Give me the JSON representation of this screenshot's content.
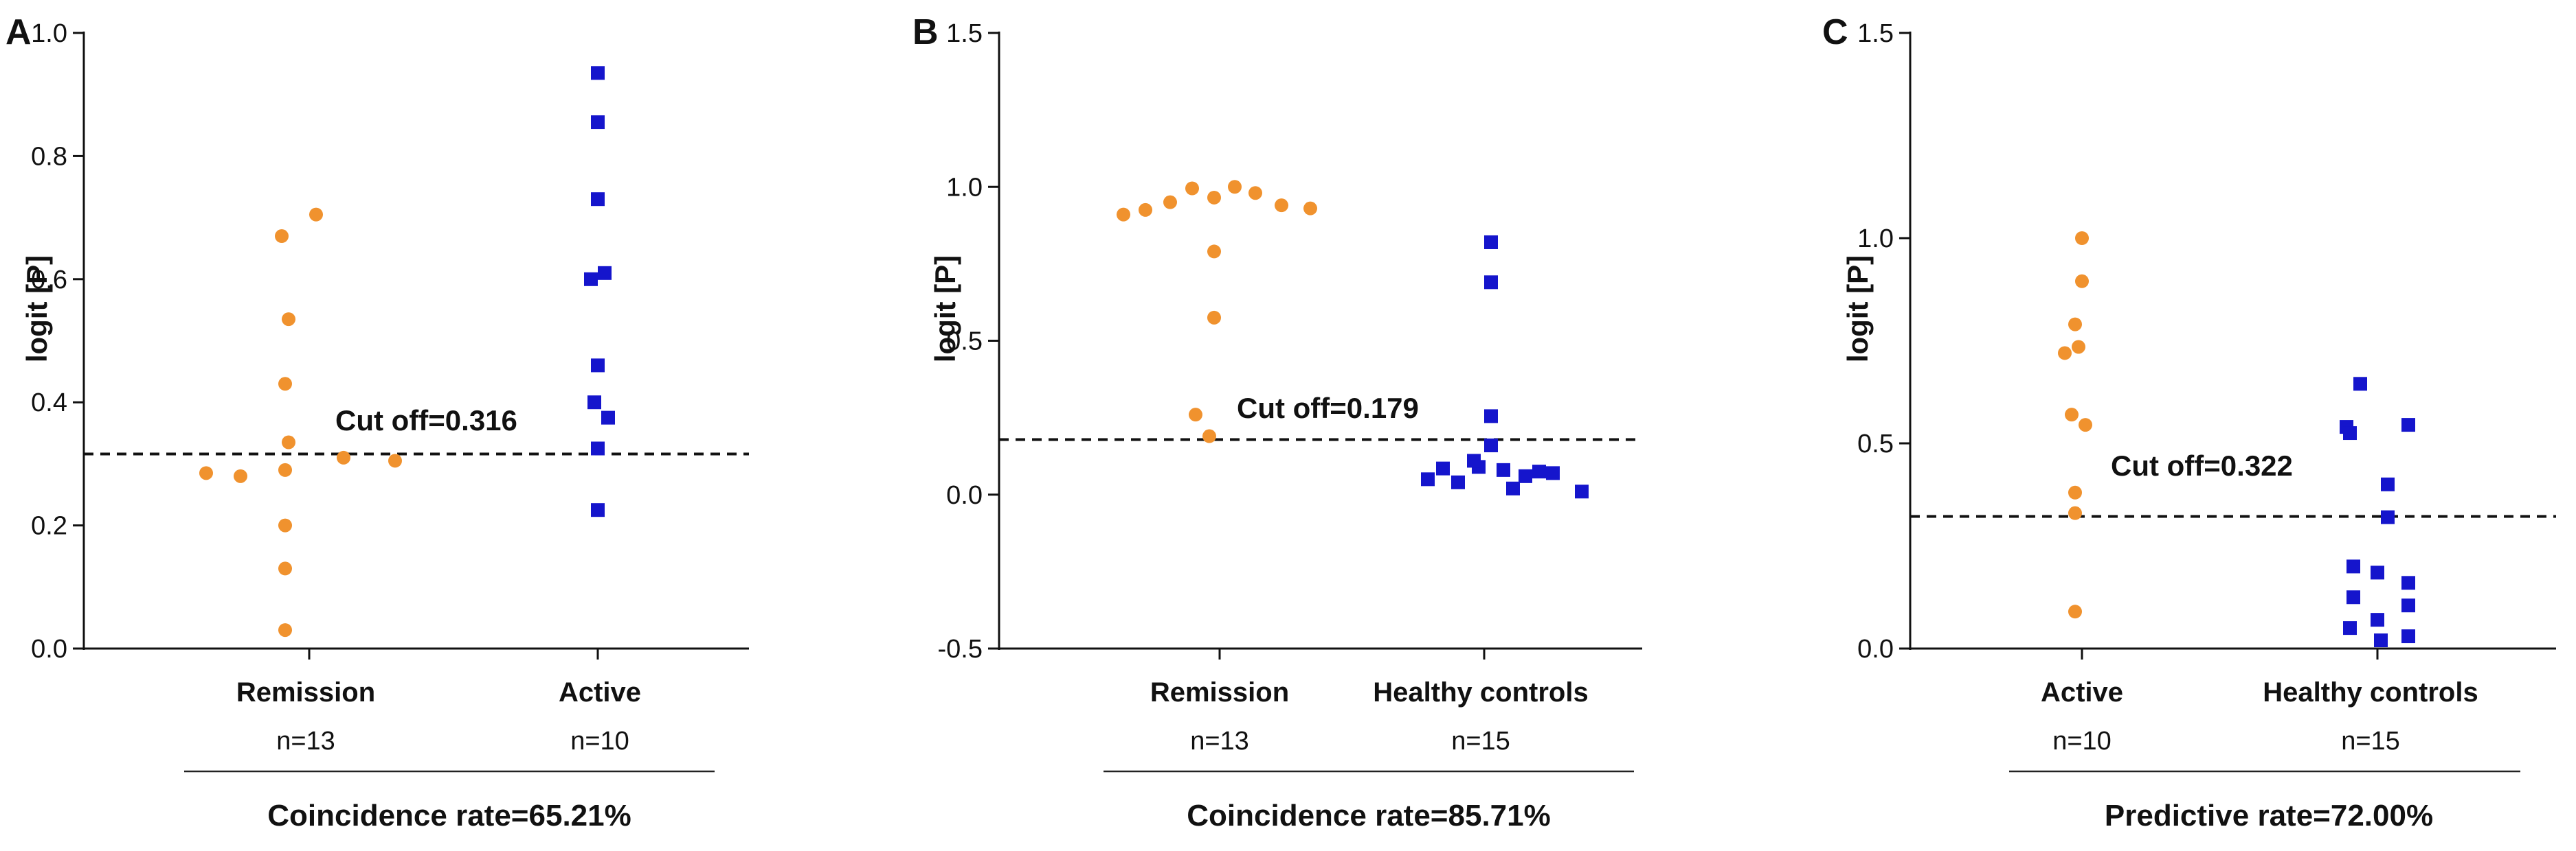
{
  "chart_data": [
    {
      "type": "scatter",
      "panel": "A",
      "ylabel": "logit [P]",
      "ylim": [
        0.0,
        1.0
      ],
      "yticks": [
        "0.0",
        "0.2",
        "0.4",
        "0.6",
        "0.8",
        "1.0"
      ],
      "categories": [
        "Remission",
        "Active"
      ],
      "n_labels": [
        "n=13",
        "n=10"
      ],
      "cutoff_value": 0.316,
      "cutoff_label": "Cut off=0.316",
      "footer": "Coincidence rate=65.21%",
      "series": [
        {
          "name": "Remission",
          "color": "#F0922E",
          "marker": "circle",
          "values": [
            0.285,
            0.28,
            0.67,
            0.705,
            0.535,
            0.43,
            0.335,
            0.29,
            0.31,
            0.305,
            0.2,
            0.13,
            0.03
          ]
        },
        {
          "name": "Active",
          "color": "#1515CC",
          "marker": "square",
          "values": [
            0.935,
            0.855,
            0.73,
            0.6,
            0.61,
            0.46,
            0.4,
            0.375,
            0.325,
            0.225
          ]
        }
      ]
    },
    {
      "type": "scatter",
      "panel": "B",
      "ylabel": "logit [P]",
      "ylim": [
        -0.5,
        1.5
      ],
      "yticks": [
        "-0.5",
        "0.0",
        "0.5",
        "1.0",
        "1.5"
      ],
      "categories": [
        "Remission",
        "Healthy controls"
      ],
      "n_labels": [
        "n=13",
        "n=15"
      ],
      "cutoff_value": 0.179,
      "cutoff_label": "Cut off=0.179",
      "footer": "Coincidence rate=85.71%",
      "series": [
        {
          "name": "Remission",
          "color": "#F0922E",
          "marker": "circle",
          "values": [
            0.91,
            0.925,
            0.95,
            0.995,
            0.965,
            1.0,
            0.98,
            0.94,
            0.93,
            0.79,
            0.575,
            0.26,
            0.19
          ]
        },
        {
          "name": "Healthy controls",
          "color": "#1515CC",
          "marker": "square",
          "values": [
            0.82,
            0.69,
            0.255,
            0.16,
            0.085,
            0.05,
            0.04,
            0.09,
            0.08,
            0.06,
            0.11,
            0.02,
            0.075,
            0.07,
            0.01
          ]
        }
      ]
    },
    {
      "type": "scatter",
      "panel": "C",
      "ylabel": "logit [P]",
      "ylim": [
        0.0,
        1.5
      ],
      "yticks": [
        "0.0",
        "0.5",
        "1.0",
        "1.5"
      ],
      "categories": [
        "Active",
        "Healthy controls"
      ],
      "n_labels": [
        "n=10",
        "n=15"
      ],
      "cutoff_value": 0.322,
      "cutoff_label": "Cut off=0.322",
      "footer": "Predictive rate=72.00%",
      "series": [
        {
          "name": "Active",
          "color": "#F0922E",
          "marker": "circle",
          "values": [
            1.0,
            0.895,
            0.79,
            0.72,
            0.735,
            0.57,
            0.545,
            0.38,
            0.33,
            0.09
          ]
        },
        {
          "name": "Healthy controls",
          "color": "#1515CC",
          "marker": "square",
          "values": [
            0.645,
            0.54,
            0.525,
            0.545,
            0.4,
            0.32,
            0.2,
            0.185,
            0.16,
            0.125,
            0.105,
            0.07,
            0.05,
            0.03,
            0.02
          ]
        }
      ]
    }
  ]
}
